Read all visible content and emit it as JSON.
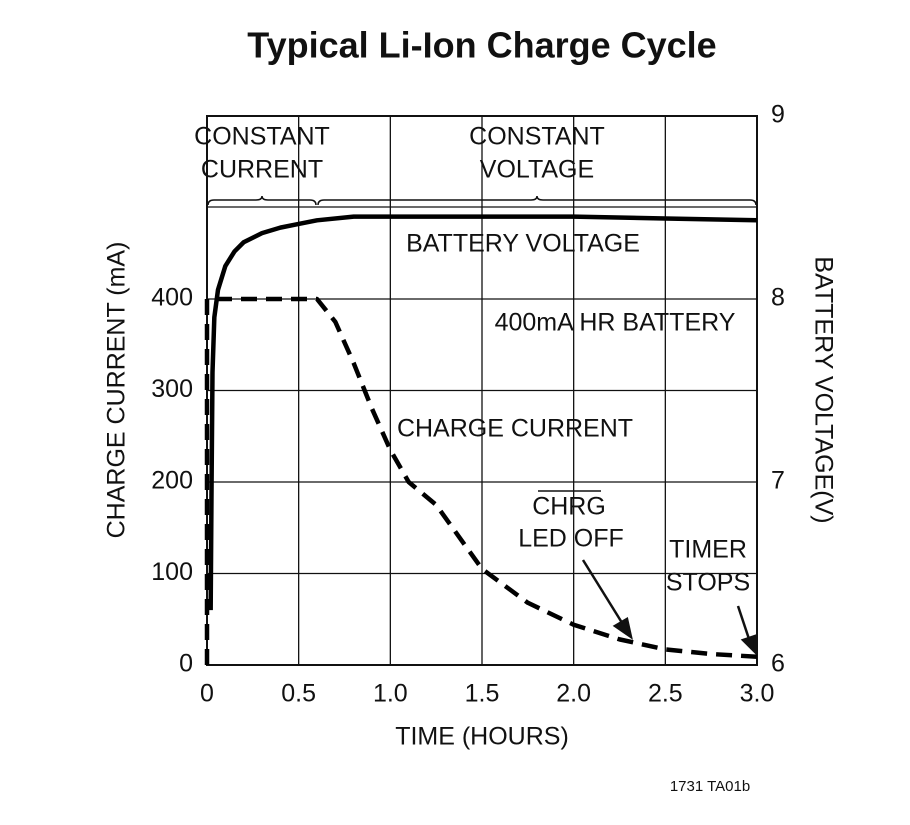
{
  "chart_data": {
    "type": "line",
    "title": "Typical Li-Ion Charge Cycle",
    "xlabel": "TIME (HOURS)",
    "ylabel": "CHARGE CURRENT (mA)",
    "y2label": "BATTERY VOLTAGE(V)",
    "xlim": [
      0,
      3.0
    ],
    "xticks": [
      0,
      0.5,
      {
        "value": 1,
        "label": "1.0"
      },
      1.5,
      {
        "value": 2,
        "label": "2.0"
      },
      2.5,
      {
        "value": 3,
        "label": "3.0"
      }
    ],
    "ylim": [
      0,
      600
    ],
    "yticks": [
      0,
      100,
      200,
      300,
      400
    ],
    "y2lim": [
      6,
      9
    ],
    "y2ticks": [
      6,
      7,
      8,
      9
    ],
    "grid": true,
    "phases": [
      {
        "label": [
          "CONSTANT",
          "CURRENT"
        ],
        "start": 0,
        "end": 0.6
      },
      {
        "label": [
          "CONSTANT",
          "VOLTAGE"
        ],
        "start": 0.6,
        "end": 3.0
      }
    ],
    "series": [
      {
        "name": "BATTERY VOLTAGE",
        "color": "#000000",
        "style": "solid",
        "axis": "y2",
        "x": [
          0.02,
          0.025,
          0.03,
          0.04,
          0.06,
          0.1,
          0.15,
          0.2,
          0.3,
          0.4,
          0.5,
          0.6,
          0.8,
          1.0,
          1.5,
          2.0,
          2.5,
          3.0
        ],
        "values": [
          6.3,
          7.0,
          7.6,
          7.9,
          8.05,
          8.18,
          8.26,
          8.31,
          8.36,
          8.39,
          8.41,
          8.43,
          8.45,
          8.45,
          8.45,
          8.45,
          8.44,
          8.43
        ]
      },
      {
        "name": "CHARGE CURRENT",
        "color": "#000000",
        "style": "dashed",
        "x": [
          0,
          0,
          0.6,
          0.7,
          0.8,
          0.9,
          1.0,
          1.1,
          1.25,
          1.5,
          1.75,
          2.0,
          2.25,
          2.5,
          2.75,
          3.0
        ],
        "values": [
          0,
          400,
          400,
          375,
          330,
          280,
          235,
          200,
          175,
          105,
          68,
          44,
          28,
          17,
          12,
          9
        ]
      }
    ],
    "annotations": [
      "400mA HR BATTERY",
      "CHRG",
      "LED OFF",
      "TIMER",
      "STOPS"
    ],
    "footnote": "1731 TA01b"
  }
}
